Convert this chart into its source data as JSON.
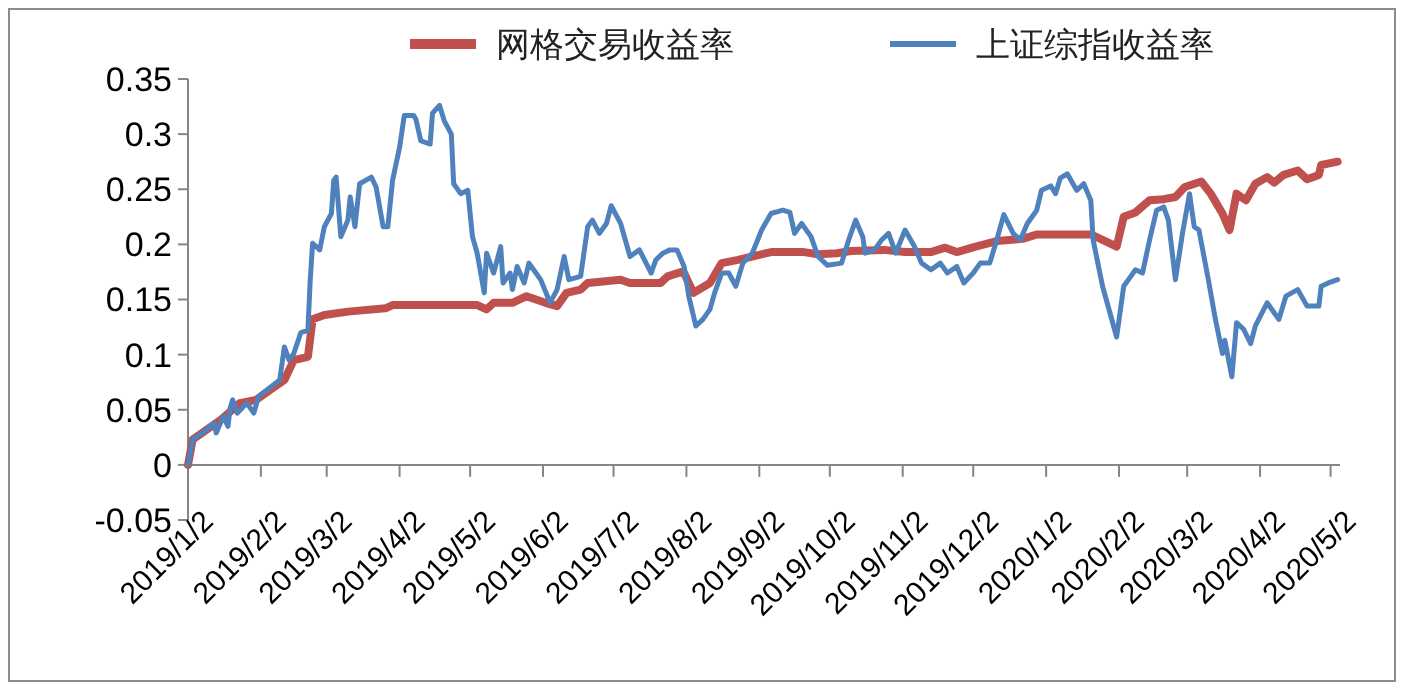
{
  "chart_data": {
    "type": "line",
    "x": [
      "2019-01-02",
      "2019-01-04",
      "2019-01-10",
      "2019-01-13",
      "2019-01-14",
      "2019-01-17",
      "2019-01-19",
      "2019-01-20",
      "2019-01-21",
      "2019-01-23",
      "2019-01-27",
      "2019-01-30",
      "2019-02-01",
      "2019-02-10",
      "2019-02-12",
      "2019-02-14",
      "2019-02-16",
      "2019-02-19",
      "2019-02-22",
      "2019-02-23",
      "2019-02-24",
      "2019-02-27",
      "2019-03-01",
      "2019-03-04",
      "2019-03-05",
      "2019-03-06",
      "2019-03-08",
      "2019-03-11",
      "2019-03-12",
      "2019-03-14",
      "2019-03-16",
      "2019-03-21",
      "2019-03-23",
      "2019-03-26",
      "2019-03-28",
      "2019-03-30",
      "2019-04-02",
      "2019-04-04",
      "2019-04-08",
      "2019-04-09",
      "2019-04-11",
      "2019-04-15",
      "2019-04-16",
      "2019-04-19",
      "2019-04-21",
      "2019-04-24",
      "2019-04-25",
      "2019-04-28",
      "2019-05-01",
      "2019-05-03",
      "2019-05-05",
      "2019-05-08",
      "2019-05-09",
      "2019-05-12",
      "2019-05-15",
      "2019-05-16",
      "2019-05-19",
      "2019-05-20",
      "2019-05-22",
      "2019-05-25",
      "2019-05-27",
      "2019-05-30",
      "2019-06-01",
      "2019-06-05",
      "2019-06-08",
      "2019-06-11",
      "2019-06-13",
      "2019-06-18",
      "2019-06-21",
      "2019-06-23",
      "2019-06-26",
      "2019-06-29",
      "2019-07-01",
      "2019-07-05",
      "2019-07-09",
      "2019-07-13",
      "2019-07-18",
      "2019-07-20",
      "2019-07-23",
      "2019-07-26",
      "2019-07-29",
      "2019-08-01",
      "2019-08-03",
      "2019-08-06",
      "2019-08-09",
      "2019-08-12",
      "2019-08-14",
      "2019-08-17",
      "2019-08-20",
      "2019-08-23",
      "2019-08-26",
      "2019-08-30",
      "2019-09-03",
      "2019-09-07",
      "2019-09-12",
      "2019-09-15",
      "2019-09-17",
      "2019-09-20",
      "2019-09-24",
      "2019-09-27",
      "2019-10-01",
      "2019-10-07",
      "2019-10-10",
      "2019-10-13",
      "2019-10-16",
      "2019-10-17",
      "2019-10-21",
      "2019-10-24",
      "2019-10-27",
      "2019-10-30",
      "2019-11-03",
      "2019-11-07",
      "2019-11-10",
      "2019-11-14",
      "2019-11-18",
      "2019-11-21",
      "2019-11-25",
      "2019-11-28",
      "2019-12-02",
      "2019-12-05",
      "2019-12-09",
      "2019-12-12",
      "2019-12-15",
      "2019-12-19",
      "2019-12-22",
      "2019-12-25",
      "2019-12-29",
      "2019-12-31",
      "2020-01-04",
      "2020-01-06",
      "2020-01-08",
      "2020-01-11",
      "2020-01-15",
      "2020-01-18",
      "2020-01-21",
      "2020-01-22",
      "2020-01-26",
      "2020-02-01",
      "2020-02-04",
      "2020-02-07",
      "2020-02-09",
      "2020-02-12",
      "2020-02-15",
      "2020-02-18",
      "2020-02-21",
      "2020-02-23",
      "2020-02-26",
      "2020-02-29",
      "2020-03-03",
      "2020-03-05",
      "2020-03-07",
      "2020-03-11",
      "2020-03-14",
      "2020-03-17",
      "2020-03-18",
      "2020-03-21",
      "2020-03-23",
      "2020-03-26",
      "2020-03-29",
      "2020-03-31",
      "2020-04-05",
      "2020-04-08",
      "2020-04-10",
      "2020-04-13",
      "2020-04-18",
      "2020-04-22",
      "2020-04-27",
      "2020-04-28",
      "2020-05-01",
      "2020-05-05"
    ],
    "series": [
      {
        "name": "网格交易收益率",
        "color": "#c0504d",
        "x": [
          "2019-01-02",
          "2019-01-04",
          "2019-01-16",
          "2019-01-24",
          "2019-01-31",
          "2019-02-08",
          "2019-02-12",
          "2019-02-16",
          "2019-02-22",
          "2019-02-24",
          "2019-03-01",
          "2019-03-11",
          "2019-03-27",
          "2019-03-30",
          "2019-05-05",
          "2019-05-09",
          "2019-05-12",
          "2019-05-20",
          "2019-05-26",
          "2019-06-03",
          "2019-06-08",
          "2019-06-12",
          "2019-06-18",
          "2019-06-21",
          "2019-07-05",
          "2019-07-09",
          "2019-07-22",
          "2019-07-25",
          "2019-07-31",
          "2019-08-01",
          "2019-08-05",
          "2019-08-12",
          "2019-08-17",
          "2019-08-24",
          "2019-08-30",
          "2019-09-07",
          "2019-09-21",
          "2019-09-27",
          "2019-10-05",
          "2019-10-11",
          "2019-10-25",
          "2019-11-03",
          "2019-11-14",
          "2019-11-20",
          "2019-11-25",
          "2019-12-03",
          "2019-12-12",
          "2019-12-23",
          "2019-12-29",
          "2020-01-21",
          "2020-01-26",
          "2020-02-01",
          "2020-02-04",
          "2020-02-09",
          "2020-02-15",
          "2020-02-21",
          "2020-02-26",
          "2020-03-01",
          "2020-03-08",
          "2020-03-12",
          "2020-03-17",
          "2020-03-20",
          "2020-03-23",
          "2020-03-27",
          "2020-03-31",
          "2020-04-05",
          "2020-04-08",
          "2020-04-12",
          "2020-04-18",
          "2020-04-22",
          "2020-04-27",
          "2020-04-28",
          "2020-05-05"
        ],
        "values": [
          0,
          0.023,
          0.041,
          0.056,
          0.059,
          0.071,
          0.077,
          0.095,
          0.098,
          0.132,
          0.136,
          0.139,
          0.142,
          0.145,
          0.145,
          0.141,
          0.147,
          0.147,
          0.153,
          0.147,
          0.144,
          0.156,
          0.159,
          0.165,
          0.168,
          0.165,
          0.165,
          0.171,
          0.175,
          0.174,
          0.156,
          0.165,
          0.183,
          0.186,
          0.189,
          0.193,
          0.193,
          0.191,
          0.192,
          0.194,
          0.195,
          0.193,
          0.193,
          0.197,
          0.193,
          0.198,
          0.203,
          0.205,
          0.209,
          0.209,
          0.204,
          0.198,
          0.225,
          0.229,
          0.24,
          0.241,
          0.243,
          0.252,
          0.257,
          0.246,
          0.228,
          0.213,
          0.246,
          0.24,
          0.255,
          0.261,
          0.256,
          0.263,
          0.267,
          0.259,
          0.263,
          0.272,
          0.275
        ]
      },
      {
        "name": "上证综指收益率",
        "color": "#4f81bd",
        "values": [
          0,
          0.023,
          0.032,
          0.038,
          0.029,
          0.044,
          0.035,
          0.052,
          0.059,
          0.047,
          0.056,
          0.047,
          0.062,
          0.077,
          0.107,
          0.095,
          0.101,
          0.12,
          0.122,
          0.168,
          0.201,
          0.195,
          0.216,
          0.228,
          0.258,
          0.261,
          0.207,
          0.222,
          0.243,
          0.216,
          0.255,
          0.261,
          0.252,
          0.216,
          0.216,
          0.258,
          0.288,
          0.317,
          0.317,
          0.313,
          0.294,
          0.291,
          0.319,
          0.326,
          0.312,
          0.3,
          0.255,
          0.246,
          0.249,
          0.207,
          0.192,
          0.156,
          0.192,
          0.174,
          0.198,
          0.165,
          0.174,
          0.159,
          0.18,
          0.165,
          0.183,
          0.174,
          0.168,
          0.147,
          0.159,
          0.189,
          0.168,
          0.171,
          0.216,
          0.222,
          0.21,
          0.219,
          0.235,
          0.219,
          0.189,
          0.195,
          0.174,
          0.186,
          0.192,
          0.195,
          0.195,
          0.18,
          0.153,
          0.126,
          0.132,
          0.141,
          0.156,
          0.174,
          0.174,
          0.162,
          0.183,
          0.192,
          0.213,
          0.228,
          0.231,
          0.229,
          0.21,
          0.219,
          0.207,
          0.189,
          0.181,
          0.183,
          0.204,
          0.222,
          0.207,
          0.192,
          0.195,
          0.204,
          0.21,
          0.192,
          0.213,
          0.198,
          0.183,
          0.177,
          0.183,
          0.174,
          0.18,
          0.165,
          0.174,
          0.183,
          0.183,
          0.204,
          0.227,
          0.21,
          0.204,
          0.219,
          0.231,
          0.249,
          0.253,
          0.246,
          0.26,
          0.264,
          0.249,
          0.255,
          0.24,
          0.204,
          0.162,
          0.116,
          0.162,
          0.171,
          0.177,
          0.174,
          0.204,
          0.231,
          0.234,
          0.222,
          0.168,
          0.21,
          0.246,
          0.216,
          0.213,
          0.168,
          0.132,
          0.101,
          0.113,
          0.08,
          0.129,
          0.123,
          0.11,
          0.126,
          0.147,
          0.138,
          0.132,
          0.153,
          0.159,
          0.144,
          0.144,
          0.162,
          0.165,
          0.168
        ]
      }
    ],
    "xlim": [
      "2019-01-02",
      "2020-05-06"
    ],
    "xticks": [
      {
        "value": "2019-01-02",
        "label": "2019/1/2"
      },
      {
        "value": "2019-02-02",
        "label": "2019/2/2"
      },
      {
        "value": "2019-03-02",
        "label": "2019/3/2"
      },
      {
        "value": "2019-04-02",
        "label": "2019/4/2"
      },
      {
        "value": "2019-05-02",
        "label": "2019/5/2"
      },
      {
        "value": "2019-06-02",
        "label": "2019/6/2"
      },
      {
        "value": "2019-07-02",
        "label": "2019/7/2"
      },
      {
        "value": "2019-08-02",
        "label": "2019/8/2"
      },
      {
        "value": "2019-09-02",
        "label": "2019/9/2"
      },
      {
        "value": "2019-10-02",
        "label": "2019/10/2"
      },
      {
        "value": "2019-11-02",
        "label": "2019/11/2"
      },
      {
        "value": "2019-12-02",
        "label": "2019/12/2"
      },
      {
        "value": "2020-01-02",
        "label": "2020/1/2"
      },
      {
        "value": "2020-02-02",
        "label": "2020/2/2"
      },
      {
        "value": "2020-03-02",
        "label": "2020/3/2"
      },
      {
        "value": "2020-04-02",
        "label": "2020/4/2"
      },
      {
        "value": "2020-05-02",
        "label": "2020/5/2"
      }
    ],
    "ylim": [
      -0.05,
      0.35
    ],
    "yticks": [
      -0.05,
      0,
      0.05,
      {
        "value": 0.1,
        "label": "0.1"
      },
      0.15,
      {
        "value": 0.2,
        "label": "0.2"
      },
      0.25,
      {
        "value": 0.3,
        "label": "0.3"
      },
      0.35
    ],
    "grid": false,
    "legend": "top",
    "marker": "none",
    "line_style": "solid"
  }
}
